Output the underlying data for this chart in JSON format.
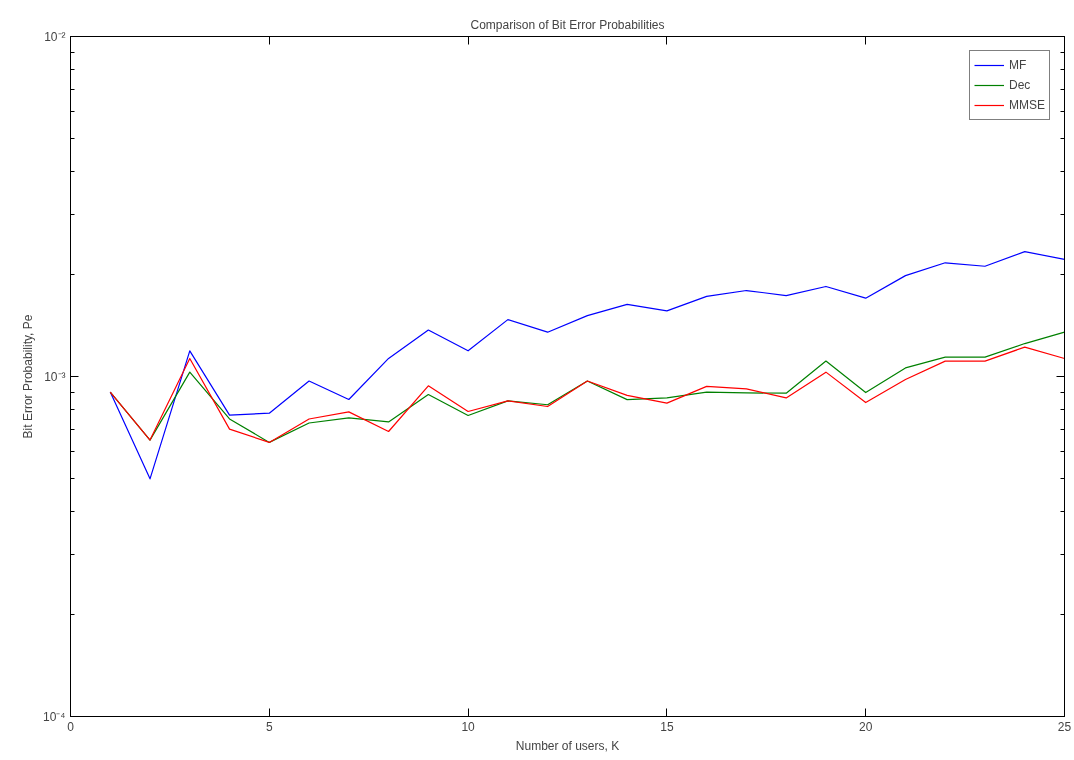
{
  "chart_data": {
    "type": "line",
    "title": "Comparison of Bit Error Probabilities",
    "xlabel": "Number of users, K",
    "ylabel": "Bit Error Probability, Pe",
    "x": [
      1,
      2,
      3,
      4,
      5,
      6,
      7,
      8,
      9,
      10,
      11,
      12,
      13,
      14,
      15,
      16,
      17,
      18,
      19,
      20,
      21,
      22,
      23,
      24,
      25
    ],
    "series": [
      {
        "name": "MF",
        "color": "#0000ff",
        "values": [
          0.0009,
          0.0005,
          0.00119,
          0.00077,
          0.00078,
          0.00097,
          0.000856,
          0.00113,
          0.00137,
          0.00119,
          0.00147,
          0.00135,
          0.00151,
          0.00163,
          0.00156,
          0.00172,
          0.00179,
          0.00173,
          0.00184,
          0.0017,
          0.00198,
          0.00216,
          0.00211,
          0.00233,
          0.00221
        ]
      },
      {
        "name": "Dec",
        "color": "#008000",
        "values": [
          0.0009,
          0.00065,
          0.00103,
          0.00075,
          0.00064,
          0.00073,
          0.000756,
          0.000735,
          0.000885,
          0.000768,
          0.000848,
          0.000826,
          0.00097,
          0.000855,
          0.000865,
          0.0009,
          0.000895,
          0.000893,
          0.00111,
          0.000897,
          0.00106,
          0.00114,
          0.00114,
          0.00125,
          0.00135
        ]
      },
      {
        "name": "MMSE",
        "color": "#ff0000",
        "values": [
          0.0009,
          0.00065,
          0.00113,
          0.0007,
          0.00064,
          0.00075,
          0.000787,
          0.000689,
          0.000939,
          0.000789,
          0.000848,
          0.000816,
          0.00097,
          0.00088,
          0.000835,
          0.000935,
          0.00092,
          0.000865,
          0.00103,
          0.000838,
          0.00098,
          0.00111,
          0.00111,
          0.00122,
          0.00113
        ]
      }
    ],
    "xlim": [
      0,
      25
    ],
    "xticks": [
      0,
      5,
      10,
      15,
      20,
      25
    ],
    "ylim": [
      0.0001,
      0.01
    ],
    "log": true,
    "yticks": [
      {
        "value": 0.0001,
        "label": "10⁻⁴"
      },
      {
        "value": 0.0002,
        "label": null
      },
      {
        "value": 0.0003,
        "label": null
      },
      {
        "value": 0.0004,
        "label": null
      },
      {
        "value": 0.0005,
        "label": null
      },
      {
        "value": 0.0006,
        "label": null
      },
      {
        "value": 0.0007,
        "label": null
      },
      {
        "value": 0.0008,
        "label": null
      },
      {
        "value": 0.0009,
        "label": null
      },
      {
        "value": 0.001,
        "label": "10⁻³"
      },
      {
        "value": 0.002,
        "label": null
      },
      {
        "value": 0.003,
        "label": null
      },
      {
        "value": 0.004,
        "label": null
      },
      {
        "value": 0.005,
        "label": null
      },
      {
        "value": 0.006,
        "label": null
      },
      {
        "value": 0.007,
        "label": null
      },
      {
        "value": 0.008,
        "label": null
      },
      {
        "value": 0.009,
        "label": null
      },
      {
        "value": 0.01,
        "label": "10⁻²"
      }
    ],
    "grid": false,
    "legend": "top right",
    "marker": "none",
    "line_style": "solid"
  }
}
